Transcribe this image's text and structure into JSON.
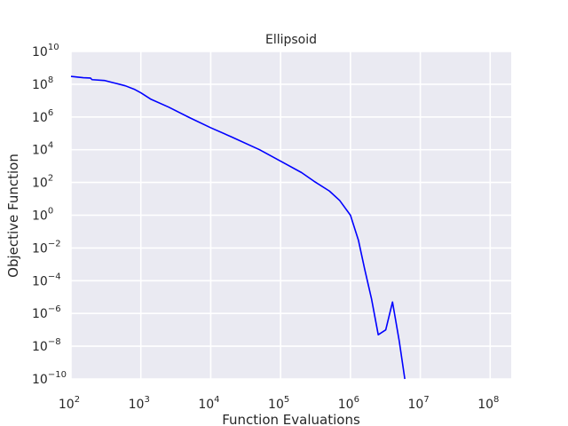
{
  "chart_data": {
    "type": "line",
    "title": "Ellipsoid",
    "xlabel": "Function Evaluations",
    "ylabel": "Objective Function",
    "xscale": "log",
    "yscale": "log",
    "xlim": [
      100,
      200000000
    ],
    "ylim": [
      1e-10,
      10000000000.0
    ],
    "grid": true,
    "x_ticks": [
      {
        "base": "10",
        "exp": "2"
      },
      {
        "base": "10",
        "exp": "3"
      },
      {
        "base": "10",
        "exp": "4"
      },
      {
        "base": "10",
        "exp": "5"
      },
      {
        "base": "10",
        "exp": "6"
      },
      {
        "base": "10",
        "exp": "7"
      },
      {
        "base": "10",
        "exp": "8"
      }
    ],
    "y_ticks": [
      {
        "base": "10",
        "exp": "10"
      },
      {
        "base": "10",
        "exp": "8"
      },
      {
        "base": "10",
        "exp": "6"
      },
      {
        "base": "10",
        "exp": "4"
      },
      {
        "base": "10",
        "exp": "2"
      },
      {
        "base": "10",
        "exp": "0"
      },
      {
        "base": "10",
        "exp": "−2"
      },
      {
        "base": "10",
        "exp": "−4"
      },
      {
        "base": "10",
        "exp": "−6"
      },
      {
        "base": "10",
        "exp": "−8"
      },
      {
        "base": "10",
        "exp": "−10"
      }
    ],
    "series": [
      {
        "color": "#0000ff",
        "points": [
          [
            100,
            300000000
          ],
          [
            150,
            250000000
          ],
          [
            190,
            240000000
          ],
          [
            200,
            190000000
          ],
          [
            300,
            170000000
          ],
          [
            450,
            110000000
          ],
          [
            600,
            80000000
          ],
          [
            800,
            50000000
          ],
          [
            1000,
            30000000
          ],
          [
            1400,
            12000000
          ],
          [
            2500,
            4000000
          ],
          [
            5000,
            900000
          ],
          [
            10000,
            220000
          ],
          [
            20000,
            60000
          ],
          [
            50000,
            10000
          ],
          [
            100000,
            2000
          ],
          [
            200000,
            400
          ],
          [
            300000,
            120
          ],
          [
            500000,
            30
          ],
          [
            700000,
            8
          ],
          [
            1000000,
            1
          ],
          [
            1300000,
            0.03
          ],
          [
            1600000,
            0.0005
          ],
          [
            2000000,
            8e-06
          ],
          [
            2500000,
            5e-08
          ],
          [
            3200000,
            1e-07
          ],
          [
            4000000,
            5e-06
          ],
          [
            5000000,
            2e-08
          ],
          [
            6000000,
            1e-10
          ]
        ]
      }
    ]
  }
}
